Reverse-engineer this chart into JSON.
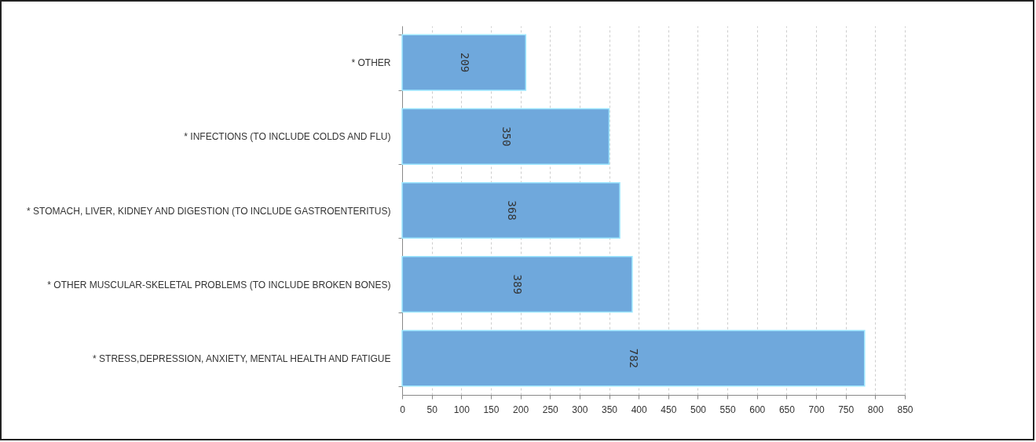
{
  "chart_data": {
    "type": "bar",
    "orientation": "horizontal",
    "categories": [
      "* OTHER",
      "* INFECTIONS (TO INCLUDE COLDS AND FLU)",
      "* STOMACH, LIVER, KIDNEY AND DIGESTION (TO INCLUDE GASTROENTERITUS)",
      "* OTHER MUSCULAR-SKELETAL PROBLEMS (TO INCLUDE BROKEN BONES)",
      "* STRESS,DEPRESSION, ANXIETY, MENTAL HEALTH AND FATIGUE"
    ],
    "values": [
      209,
      350,
      368,
      389,
      782
    ],
    "color": "#6fa8dc",
    "xlim": [
      0,
      850
    ],
    "xticks": [
      0,
      50,
      100,
      150,
      200,
      250,
      300,
      350,
      400,
      450,
      500,
      550,
      600,
      650,
      700,
      750,
      800,
      850
    ],
    "grid": "x",
    "data_labels": true
  }
}
